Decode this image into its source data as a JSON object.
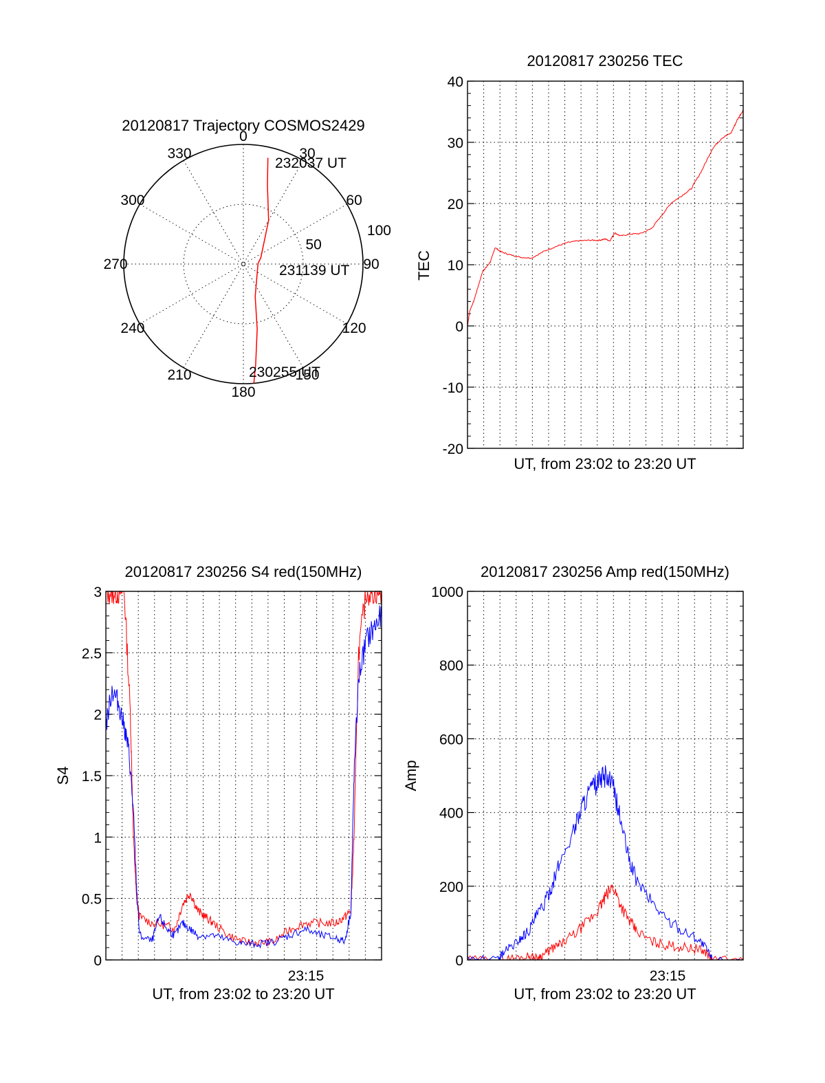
{
  "colors": {
    "red": "#ff0000",
    "blue": "#0000ff",
    "axis": "#000000"
  },
  "chart_data": [
    {
      "type": "polar",
      "title": "20120817 Trajectory COSMOS2429",
      "azimuth_labels": [
        "0",
        "30",
        "60",
        "90",
        "120",
        "150",
        "180",
        "210",
        "240",
        "270",
        "300",
        "330"
      ],
      "radial_labels": [
        "50",
        "100"
      ],
      "trajectory": [
        {
          "azimuth": 13,
          "zenith": 82
        },
        {
          "azimuth": 17,
          "zenith": 62
        },
        {
          "azimuth": 30,
          "zenith": 38
        },
        {
          "azimuth": 70,
          "zenith": 14
        },
        {
          "azimuth": 88,
          "zenith": 11
        },
        {
          "azimuth": 160,
          "zenith": 26
        },
        {
          "azimuth": 168,
          "zenith": 50
        },
        {
          "azimuth": 173,
          "zenith": 76
        },
        {
          "azimuth": 175,
          "zenith": 90
        }
      ],
      "annotations": [
        "232037 UT",
        "231139 UT",
        "230255 UT"
      ],
      "series_color": "#ff0000"
    },
    {
      "type": "line",
      "title": "20120817 230256 TEC",
      "xlabel": "UT, from 23:02 to 23:20 UT",
      "ylabel": "TEC",
      "ylim": [
        -20,
        40
      ],
      "yticks": [
        "-20",
        "-10",
        "0",
        "10",
        "20",
        "30",
        "40"
      ],
      "xlim_minutes": [
        0,
        18
      ],
      "series": [
        {
          "color": "#ff0000",
          "x": [
            0.0,
            0.15,
            0.4,
            0.7,
            1.0,
            1.2,
            1.5,
            1.8,
            2.2,
            2.8,
            3.5,
            4.2,
            5.0,
            5.8,
            6.5,
            7.2,
            8.0,
            8.6,
            9.0,
            9.3,
            9.6,
            10.0,
            10.6,
            11.3,
            12.0,
            12.6,
            13.3,
            14.0,
            14.6,
            15.3,
            16.0,
            16.6,
            17.2,
            17.6,
            18.0
          ],
          "y": [
            0.0,
            2.5,
            4.0,
            6.5,
            9.0,
            9.5,
            10.5,
            12.8,
            12.1,
            11.6,
            11.2,
            11.1,
            12.2,
            13.0,
            13.6,
            13.9,
            14.0,
            14.0,
            14.2,
            13.9,
            15.2,
            14.7,
            15.0,
            15.1,
            15.9,
            17.8,
            20.1,
            21.3,
            22.4,
            25.4,
            29.0,
            30.7,
            31.5,
            33.6,
            35.3
          ]
        }
      ]
    },
    {
      "type": "line",
      "title": "20120817 230256 S4 red(150MHz)",
      "xlabel": "UT, from 23:02 to 23:20 UT",
      "ylabel": "S4",
      "ylim": [
        0,
        3
      ],
      "yticks": [
        "0",
        "0.5",
        "1",
        "1.5",
        "2",
        "2.5",
        "3"
      ],
      "xtick_labels": [
        "23:15"
      ],
      "xlim_minutes": [
        0,
        18
      ],
      "series": [
        {
          "color": "#ff0000",
          "x": [
            0.0,
            0.4,
            0.8,
            1.2,
            1.6,
            1.8,
            2.0,
            2.2,
            3.0,
            4.0,
            4.5,
            5.0,
            5.5,
            6.0,
            6.5,
            7.0,
            8.0,
            9.0,
            10.0,
            11.0,
            12.0,
            13.0,
            14.0,
            15.0,
            15.6,
            16.0,
            16.2,
            16.5,
            17.0,
            17.5,
            18.0
          ],
          "y": [
            3.0,
            3.0,
            3.0,
            3.0,
            2.0,
            1.0,
            0.5,
            0.35,
            0.3,
            0.28,
            0.25,
            0.45,
            0.55,
            0.4,
            0.35,
            0.3,
            0.2,
            0.15,
            0.14,
            0.15,
            0.25,
            0.3,
            0.3,
            0.3,
            0.35,
            0.4,
            1.0,
            2.5,
            3.0,
            3.0,
            3.0
          ]
        },
        {
          "color": "#0000ff",
          "x": [
            0.0,
            0.4,
            0.8,
            1.2,
            1.5,
            1.8,
            2.0,
            2.2,
            3.0,
            3.5,
            4.0,
            4.5,
            5.0,
            5.5,
            6.0,
            7.0,
            8.0,
            9.0,
            10.0,
            11.0,
            12.0,
            13.0,
            14.0,
            15.0,
            15.6,
            16.0,
            16.2,
            16.5,
            17.0,
            17.5,
            18.0
          ],
          "y": [
            1.9,
            2.2,
            2.1,
            1.9,
            1.7,
            1.2,
            0.6,
            0.2,
            0.15,
            0.35,
            0.25,
            0.2,
            0.3,
            0.25,
            0.2,
            0.2,
            0.16,
            0.13,
            0.13,
            0.15,
            0.2,
            0.25,
            0.2,
            0.18,
            0.15,
            0.4,
            1.5,
            2.3,
            2.6,
            2.7,
            2.8
          ]
        }
      ]
    },
    {
      "type": "line",
      "title": "20120817 230256 Amp red(150MHz)",
      "xlabel": "UT, from 23:02 to 23:20 UT",
      "ylabel": "Amp",
      "ylim": [
        0,
        1000
      ],
      "yticks": [
        "0",
        "200",
        "400",
        "600",
        "800",
        "1000"
      ],
      "xtick_labels": [
        "23:15"
      ],
      "xlim_minutes": [
        0,
        18
      ],
      "series": [
        {
          "color": "#ff0000",
          "x": [
            0.0,
            2.0,
            3.0,
            4.0,
            4.5,
            5.0,
            5.5,
            6.0,
            7.0,
            8.0,
            8.6,
            9.0,
            9.5,
            10.0,
            10.5,
            11.0,
            12.0,
            13.0,
            14.0,
            15.0,
            15.6,
            16.0,
            18.0
          ],
          "y": [
            0,
            0,
            5,
            10,
            5,
            15,
            30,
            40,
            70,
            110,
            140,
            170,
            200,
            150,
            110,
            80,
            50,
            40,
            35,
            30,
            20,
            0,
            0
          ]
        },
        {
          "color": "#0000ff",
          "x": [
            0.0,
            2.0,
            2.3,
            3.0,
            3.5,
            4.0,
            4.5,
            5.0,
            5.5,
            6.0,
            7.0,
            7.5,
            8.0,
            8.5,
            9.0,
            9.5,
            10.0,
            10.5,
            11.0,
            12.0,
            13.0,
            14.0,
            15.0,
            15.6,
            16.0,
            18.0
          ],
          "y": [
            0,
            0,
            20,
            40,
            60,
            80,
            120,
            150,
            200,
            260,
            360,
            420,
            460,
            480,
            500,
            470,
            380,
            280,
            220,
            160,
            110,
            80,
            60,
            30,
            0,
            0
          ]
        }
      ]
    }
  ]
}
